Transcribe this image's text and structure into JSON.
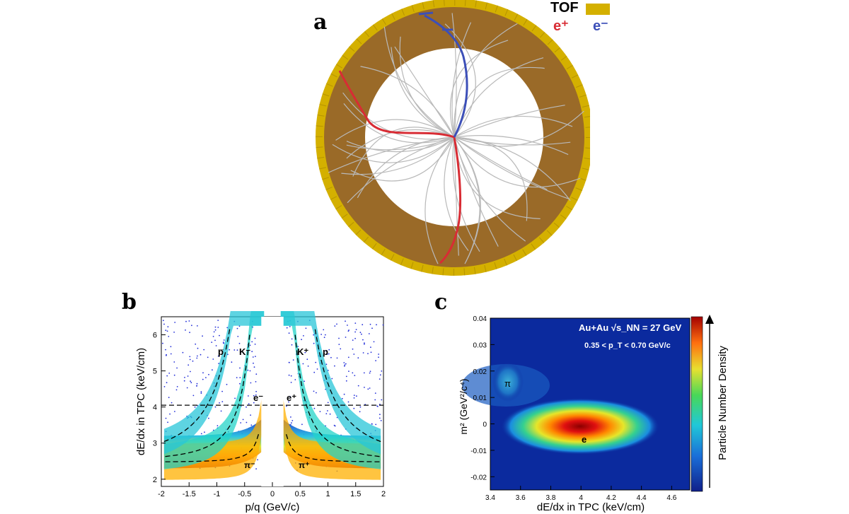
{
  "panels": {
    "a": "a",
    "b": "b",
    "c": "c"
  },
  "legend_a": {
    "tof": "TOF",
    "e_plus": "e⁺",
    "e_minus": "e⁻",
    "tof_color": "#d4b000",
    "e_plus_color": "#d82c34",
    "e_minus_color": "#3c4fb8"
  },
  "panel_b": {
    "xlabel": "p/q (GeV/c)",
    "ylabel": "dE/dx in TPC (keV/cm)",
    "x_ticks": [
      "-2",
      "-1.5",
      "-1",
      "-0.5",
      "0",
      "0.5",
      "1",
      "1.5",
      "2"
    ],
    "y_ticks": [
      "2",
      "3",
      "4",
      "5",
      "6"
    ],
    "particle_labels": {
      "pbar": "p̅",
      "kminus": "K⁻",
      "eminus": "e⁻",
      "eplus": "e⁺",
      "kplus": "K⁺",
      "p": "p",
      "piminus": "π⁻",
      "piplus": "π⁺"
    }
  },
  "panel_c": {
    "xlabel": "dE/dx in TPC (keV/cm)",
    "ylabel": "m² (GeV²/c⁴)",
    "annotation1": "Au+Au  √s_NN = 27 GeV",
    "annotation2": "0.35 < p_T < 0.70 GeV/c",
    "x_ticks": [
      "3.4",
      "3.6",
      "3.8",
      "4",
      "4.2",
      "4.4",
      "4.6"
    ],
    "y_ticks": [
      "-0.02",
      "-0.01",
      "0",
      "0.01",
      "0.02",
      "0.03",
      "0.04"
    ],
    "pi_label": "π",
    "e_label": "e",
    "colorbar_label": "Particle Number Density"
  },
  "chart_data": [
    {
      "type": "heatmap",
      "title": "",
      "xlabel": "p/q (GeV/c)",
      "ylabel": "dE/dx in TPC (keV/cm)",
      "xlim": [
        -2,
        2
      ],
      "ylim": [
        1.8,
        6.5
      ],
      "expected_bands": [
        {
          "name": "e",
          "dEdx": 4.05
        },
        {
          "name": "π",
          "dEdx_min": 2.7
        },
        {
          "name": "K",
          "dEdx_at_0.5": 5.0
        },
        {
          "name": "p",
          "dEdx_at_1.0": 4.8
        }
      ],
      "grid": false
    },
    {
      "type": "heatmap",
      "title": "",
      "xlabel": "dE/dx in TPC (keV/cm)",
      "ylabel": "m² (GeV²/c⁴)",
      "xlim": [
        3.4,
        4.7
      ],
      "ylim": [
        -0.025,
        0.04
      ],
      "clusters": [
        {
          "name": "e",
          "x": 4.0,
          "y": 0.0
        },
        {
          "name": "π",
          "x": 3.52,
          "y": 0.016
        }
      ],
      "colorbar": "Particle Number Density",
      "grid": false
    }
  ]
}
